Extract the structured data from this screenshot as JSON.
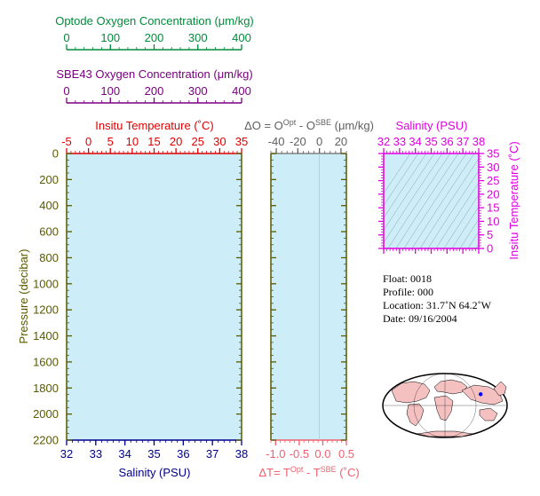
{
  "colors": {
    "optode": "#008b3a",
    "sbe43": "#7a0080",
    "temperature": "#e00000",
    "salinity_bottom": "#00008b",
    "salinity_ts": "#e000e0",
    "pressure": "#5a5a00",
    "delta": "#606060",
    "delta_t": "#f06070",
    "panel_fill": "#cdeef8",
    "land": "#f4c0c0"
  },
  "chart_data": [
    {
      "type": "line",
      "name": "optode-axis",
      "xlabel": "Optode Oxygen Concentration (μm/kg)",
      "xlim": [
        0,
        400
      ],
      "ticks": [
        "0",
        "100",
        "200",
        "300",
        "400"
      ],
      "series": []
    },
    {
      "type": "line",
      "name": "sbe43-axis",
      "xlabel": "SBE43 Oxygen Concentration (μm/kg)",
      "xlim": [
        0,
        400
      ],
      "ticks": [
        "0",
        "100",
        "200",
        "300",
        "400"
      ],
      "series": []
    },
    {
      "type": "line",
      "name": "profile-panel",
      "title_top": "Insitu Temperature (˚C)",
      "top_xlim": [
        -5,
        35
      ],
      "top_ticks": [
        "-5",
        "0",
        "5",
        "10",
        "15",
        "20",
        "25",
        "30",
        "35"
      ],
      "xlabel": "Salinity (PSU)",
      "xlim": [
        32,
        38
      ],
      "x_ticks": [
        "32",
        "33",
        "34",
        "35",
        "36",
        "37",
        "38"
      ],
      "ylabel": "Pressure (decibar)",
      "ylim": [
        0,
        2200
      ],
      "y_ticks": [
        "0",
        "200",
        "400",
        "600",
        "800",
        "1000",
        "1200",
        "1400",
        "1600",
        "1800",
        "2000",
        "2200"
      ],
      "series": []
    },
    {
      "type": "line",
      "name": "delta-panel",
      "top_label_parts": [
        "ΔO = O",
        "Opt",
        " - O",
        "SBE",
        " (μm/kg)"
      ],
      "top_xlim": [
        -45,
        25
      ],
      "top_ticks": [
        "-40",
        "-20",
        "0",
        "20"
      ],
      "bottom_label_parts": [
        "ΔT= T",
        "Opt",
        " - T",
        "SBE",
        " (˚C)"
      ],
      "xlim": [
        -1.1,
        0.5
      ],
      "x_ticks": [
        "-1.0",
        "-0.5",
        "0.0",
        "0.5"
      ],
      "ylim": [
        0,
        2200
      ],
      "series": []
    },
    {
      "type": "line",
      "name": "ts-diagram",
      "xlabel": "Salinity (PSU)",
      "xlim": [
        32,
        38
      ],
      "x_ticks": [
        "32",
        "33",
        "34",
        "35",
        "36",
        "37",
        "38"
      ],
      "ylabel": "Insitu Temperature (˚C)",
      "ylim": [
        0,
        35
      ],
      "y_ticks": [
        "0",
        "5",
        "10",
        "15",
        "20",
        "25",
        "30",
        "35"
      ],
      "grid": true,
      "series": []
    }
  ],
  "info": {
    "float": "Float:  0018",
    "profile": "Profile:  000",
    "location": "Location:  31.7˚N  64.2˚W",
    "date": "Date:  09/16/2004"
  },
  "map": {
    "marker_lat": 31.7,
    "marker_lon": -64.2,
    "marker_color": "#0000ff"
  }
}
